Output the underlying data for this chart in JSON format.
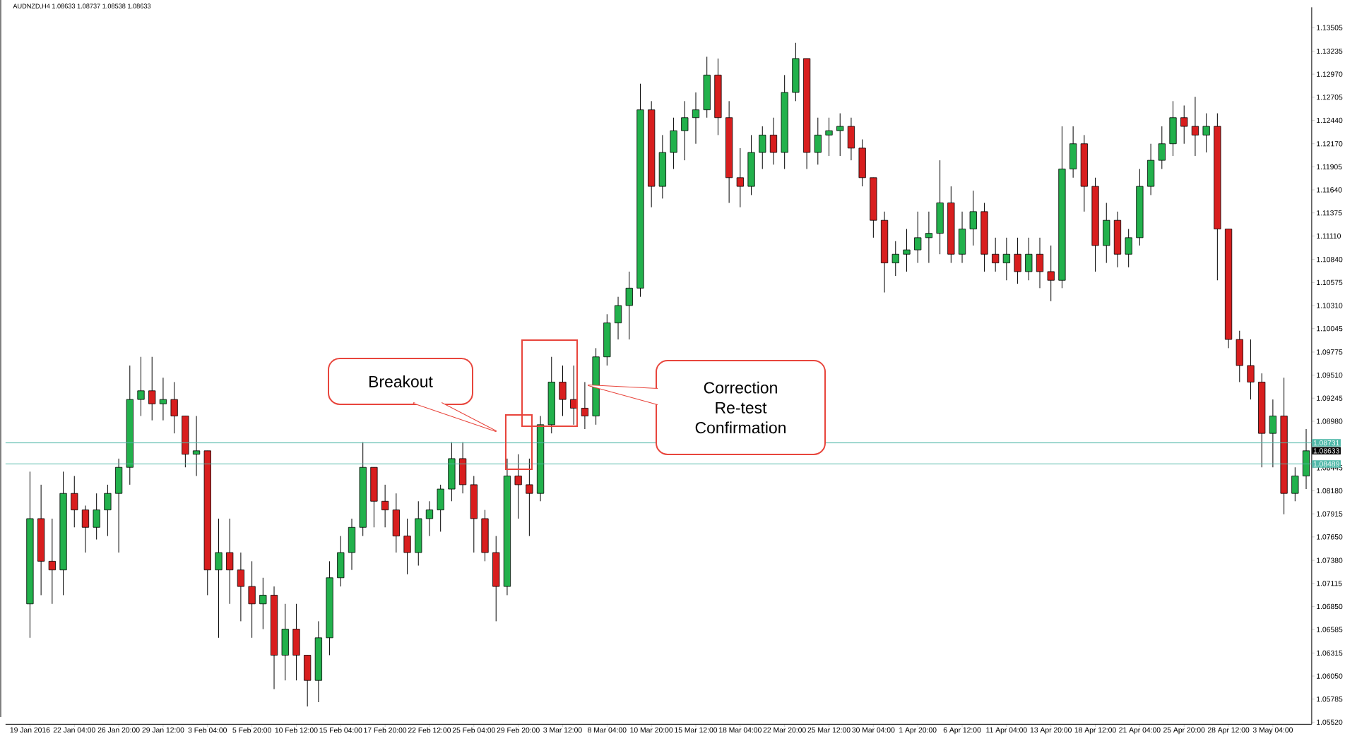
{
  "chart_data": {
    "type": "candlestick",
    "title": "AUDNZD,H4 1.08633 1.08737 1.08538 1.08633",
    "categories": [
      "19 Jan 2016",
      null,
      null,
      null,
      "22 Jan 04:00",
      null,
      null,
      null,
      "26 Jan 20:00",
      null,
      null,
      null,
      "29 Jan 12:00",
      null,
      null,
      null,
      "3 Feb 04:00",
      null,
      null,
      null,
      "5 Feb 20:00",
      null,
      null,
      null,
      "10 Feb 12:00",
      null,
      null,
      null,
      "15 Feb 04:00",
      null,
      null,
      null,
      "17 Feb 20:00",
      null,
      null,
      null,
      "22 Feb 12:00",
      null,
      null,
      null,
      "25 Feb 04:00",
      null,
      null,
      null,
      "29 Feb 20:00",
      null,
      null,
      null,
      "3 Mar 12:00",
      null,
      null,
      null,
      "8 Mar 04:00",
      null,
      null,
      null,
      "10 Mar 20:00",
      null,
      null,
      null,
      "15 Mar 12:00",
      null,
      null,
      null,
      "18 Mar 04:00",
      null,
      null,
      null,
      "22 Mar 20:00",
      null,
      null,
      null,
      "25 Mar 12:00",
      null,
      null,
      null,
      "30 Mar 04:00",
      null,
      null,
      null,
      "1 Apr 20:00",
      null,
      null,
      null,
      "6 Apr 12:00",
      null,
      null,
      null,
      "11 Apr 04:00",
      null,
      null,
      null,
      "13 Apr 20:00",
      null,
      null,
      null,
      "18 Apr 12:00",
      null,
      null,
      null,
      "21 Apr 04:00",
      null,
      null,
      null,
      "25 Apr 20:00",
      null,
      null,
      null,
      "28 Apr 12:00",
      null,
      null,
      null,
      "3 May 04:00",
      null,
      null,
      null
    ],
    "ohlc": [
      [
        1.0688,
        1.084,
        1.0649,
        1.0786
      ],
      [
        1.0786,
        1.0825,
        1.0698,
        1.0737
      ],
      [
        1.0737,
        1.0786,
        1.0688,
        1.0727
      ],
      [
        1.0727,
        1.084,
        1.0698,
        1.0815
      ],
      [
        1.0815,
        1.0835,
        1.0776,
        1.0796
      ],
      [
        1.0796,
        1.0801,
        1.0747,
        1.0776
      ],
      [
        1.0776,
        1.0815,
        1.0762,
        1.0796
      ],
      [
        1.0796,
        1.0825,
        1.0766,
        1.0815
      ],
      [
        1.0815,
        1.0855,
        1.0747,
        1.0845
      ],
      [
        1.0845,
        1.0962,
        1.0825,
        1.0923
      ],
      [
        1.0923,
        1.0972,
        1.0904,
        1.0933
      ],
      [
        1.0933,
        1.0972,
        1.0899,
        1.0918
      ],
      [
        1.0918,
        1.0948,
        1.0899,
        1.0923
      ],
      [
        1.0923,
        1.0943,
        1.0884,
        1.0904
      ],
      [
        1.0904,
        1.0904,
        1.0845,
        1.086
      ],
      [
        1.086,
        1.0904,
        1.0835,
        1.0864
      ],
      [
        1.0864,
        1.0864,
        1.0698,
        1.0727
      ],
      [
        1.0727,
        1.0786,
        1.0649,
        1.0747
      ],
      [
        1.0747,
        1.0786,
        1.0688,
        1.0727
      ],
      [
        1.0727,
        1.0747,
        1.0668,
        1.0708
      ],
      [
        1.0708,
        1.0737,
        1.0649,
        1.0688
      ],
      [
        1.0688,
        1.0718,
        1.0659,
        1.0698
      ],
      [
        1.0698,
        1.0708,
        1.059,
        1.0629
      ],
      [
        1.0629,
        1.0688,
        1.06,
        1.0659
      ],
      [
        1.0659,
        1.0688,
        1.06,
        1.0629
      ],
      [
        1.0629,
        1.0629,
        1.057,
        1.06
      ],
      [
        1.06,
        1.0668,
        1.0575,
        1.0649
      ],
      [
        1.0649,
        1.0737,
        1.0629,
        1.0718
      ],
      [
        1.0718,
        1.0766,
        1.0708,
        1.0747
      ],
      [
        1.0747,
        1.0786,
        1.0727,
        1.0776
      ],
      [
        1.0776,
        1.0874,
        1.0766,
        1.0845
      ],
      [
        1.0845,
        1.0845,
        1.0776,
        1.0806
      ],
      [
        1.0806,
        1.0825,
        1.0776,
        1.0796
      ],
      [
        1.0796,
        1.0815,
        1.0747,
        1.0766
      ],
      [
        1.0766,
        1.0786,
        1.0722,
        1.0747
      ],
      [
        1.0747,
        1.0806,
        1.0732,
        1.0786
      ],
      [
        1.0786,
        1.0806,
        1.0766,
        1.0796
      ],
      [
        1.0796,
        1.0825,
        1.0771,
        1.082
      ],
      [
        1.082,
        1.0874,
        1.0806,
        1.0855
      ],
      [
        1.0855,
        1.0874,
        1.0815,
        1.0825
      ],
      [
        1.0825,
        1.0835,
        1.0747,
        1.0786
      ],
      [
        1.0786,
        1.0796,
        1.0737,
        1.0747
      ],
      [
        1.0747,
        1.0766,
        1.0668,
        1.0708
      ],
      [
        1.0708,
        1.0855,
        1.0698,
        1.0835
      ],
      [
        1.0835,
        1.086,
        1.0786,
        1.0825
      ],
      [
        1.0825,
        1.0855,
        1.0766,
        1.0815
      ],
      [
        1.0815,
        1.0904,
        1.0806,
        1.0894
      ],
      [
        1.0894,
        1.0972,
        1.0884,
        1.0943
      ],
      [
        1.0943,
        1.0962,
        1.0904,
        1.0923
      ],
      [
        1.0923,
        1.0962,
        1.0894,
        1.0913
      ],
      [
        1.0913,
        1.0943,
        1.0889,
        1.0904
      ],
      [
        1.0904,
        1.0982,
        1.0894,
        1.0972
      ],
      [
        1.0972,
        1.1021,
        1.0962,
        1.1011
      ],
      [
        1.1011,
        1.1041,
        1.0992,
        1.1031
      ],
      [
        1.1031,
        1.107,
        1.0992,
        1.1051
      ],
      [
        1.1051,
        1.1286,
        1.1041,
        1.1256
      ],
      [
        1.1256,
        1.1266,
        1.1144,
        1.1168
      ],
      [
        1.1168,
        1.1227,
        1.1154,
        1.1207
      ],
      [
        1.1207,
        1.1247,
        1.1188,
        1.1232
      ],
      [
        1.1232,
        1.1266,
        1.1198,
        1.1247
      ],
      [
        1.1247,
        1.1276,
        1.1217,
        1.1256
      ],
      [
        1.1256,
        1.1317,
        1.1247,
        1.1296
      ],
      [
        1.1296,
        1.1315,
        1.1227,
        1.1247
      ],
      [
        1.1247,
        1.1266,
        1.1149,
        1.1178
      ],
      [
        1.1178,
        1.1212,
        1.1144,
        1.1168
      ],
      [
        1.1168,
        1.1227,
        1.1158,
        1.1207
      ],
      [
        1.1207,
        1.1237,
        1.1188,
        1.1227
      ],
      [
        1.1227,
        1.1247,
        1.1193,
        1.1207
      ],
      [
        1.1207,
        1.1296,
        1.1188,
        1.1276
      ],
      [
        1.1276,
        1.1333,
        1.1266,
        1.1315
      ],
      [
        1.1315,
        1.1315,
        1.1188,
        1.1207
      ],
      [
        1.1207,
        1.1247,
        1.1193,
        1.1227
      ],
      [
        1.1227,
        1.1247,
        1.1203,
        1.1232
      ],
      [
        1.1232,
        1.1252,
        1.1203,
        1.1237
      ],
      [
        1.1237,
        1.1247,
        1.1198,
        1.1212
      ],
      [
        1.1212,
        1.1222,
        1.1168,
        1.1178
      ],
      [
        1.1178,
        1.1178,
        1.1109,
        1.1129
      ],
      [
        1.1129,
        1.1139,
        1.1046,
        1.108
      ],
      [
        1.108,
        1.1105,
        1.1065,
        1.109
      ],
      [
        1.109,
        1.1119,
        1.107,
        1.1095
      ],
      [
        1.1095,
        1.1139,
        1.108,
        1.1109
      ],
      [
        1.1109,
        1.1139,
        1.108,
        1.1114
      ],
      [
        1.1114,
        1.1198,
        1.109,
        1.1149
      ],
      [
        1.1149,
        1.1168,
        1.108,
        1.109
      ],
      [
        1.109,
        1.1139,
        1.108,
        1.1119
      ],
      [
        1.1119,
        1.1163,
        1.11,
        1.1139
      ],
      [
        1.1139,
        1.1149,
        1.107,
        1.109
      ],
      [
        1.109,
        1.1109,
        1.107,
        1.108
      ],
      [
        1.108,
        1.1109,
        1.106,
        1.109
      ],
      [
        1.109,
        1.1109,
        1.1056,
        1.107
      ],
      [
        1.107,
        1.1109,
        1.106,
        1.109
      ],
      [
        1.109,
        1.1109,
        1.1051,
        1.107
      ],
      [
        1.107,
        1.11,
        1.1036,
        1.106
      ],
      [
        1.106,
        1.1237,
        1.1051,
        1.1188
      ],
      [
        1.1188,
        1.1237,
        1.1178,
        1.1217
      ],
      [
        1.1217,
        1.1227,
        1.1139,
        1.1168
      ],
      [
        1.1168,
        1.1178,
        1.107,
        1.11
      ],
      [
        1.11,
        1.1149,
        1.108,
        1.1129
      ],
      [
        1.1129,
        1.1139,
        1.1075,
        1.109
      ],
      [
        1.109,
        1.1119,
        1.1075,
        1.1109
      ],
      [
        1.1109,
        1.1188,
        1.11,
        1.1168
      ],
      [
        1.1168,
        1.1217,
        1.1158,
        1.1198
      ],
      [
        1.1198,
        1.1237,
        1.1188,
        1.1217
      ],
      [
        1.1217,
        1.1266,
        1.1203,
        1.1247
      ],
      [
        1.1247,
        1.1261,
        1.1217,
        1.1237
      ],
      [
        1.1237,
        1.1271,
        1.1203,
        1.1227
      ],
      [
        1.1227,
        1.1252,
        1.1207,
        1.1237
      ],
      [
        1.1237,
        1.1252,
        1.106,
        1.1119
      ],
      [
        1.1119,
        1.1119,
        1.0982,
        1.0992
      ],
      [
        1.0992,
        1.1002,
        1.0943,
        1.0962
      ],
      [
        1.0962,
        1.0992,
        1.0923,
        1.0943
      ],
      [
        1.0943,
        1.0953,
        1.0845,
        1.0884
      ],
      [
        1.0884,
        1.0923,
        1.0845,
        1.0904
      ],
      [
        1.0904,
        1.0948,
        1.0791,
        1.0815
      ],
      [
        1.0815,
        1.0845,
        1.0806,
        1.0835
      ],
      [
        1.0835,
        1.0889,
        1.082,
        1.0864
      ]
    ],
    "colors": [
      "#22b14c",
      "#d81e1e",
      "#d81e1e",
      "#22b14c",
      "#d81e1e",
      "#d81e1e",
      "#22b14c",
      "#22b14c",
      "#22b14c",
      "#22b14c",
      "#22b14c",
      "#d81e1e",
      "#22b14c",
      "#d81e1e",
      "#d81e1e",
      "#22b14c",
      "#d81e1e",
      "#22b14c",
      "#d81e1e",
      "#d81e1e",
      "#d81e1e",
      "#22b14c",
      "#d81e1e",
      "#22b14c",
      "#d81e1e",
      "#d81e1e",
      "#22b14c",
      "#22b14c",
      "#22b14c",
      "#22b14c",
      "#22b14c",
      "#d81e1e",
      "#d81e1e",
      "#d81e1e",
      "#d81e1e",
      "#22b14c",
      "#22b14c",
      "#22b14c",
      "#22b14c",
      "#d81e1e",
      "#d81e1e",
      "#d81e1e",
      "#d81e1e",
      "#22b14c",
      "#d81e1e",
      "#d81e1e",
      "#22b14c",
      "#22b14c",
      "#d81e1e",
      "#d81e1e",
      "#d81e1e",
      "#22b14c",
      "#22b14c",
      "#22b14c",
      "#22b14c",
      "#22b14c",
      "#d81e1e",
      "#22b14c",
      "#22b14c",
      "#22b14c",
      "#22b14c",
      "#22b14c",
      "#d81e1e",
      "#d81e1e",
      "#d81e1e",
      "#22b14c",
      "#22b14c",
      "#d81e1e",
      "#22b14c",
      "#22b14c",
      "#d81e1e",
      "#22b14c",
      "#22b14c",
      "#22b14c",
      "#d81e1e",
      "#d81e1e",
      "#d81e1e",
      "#d81e1e",
      "#22b14c",
      "#22b14c",
      "#22b14c",
      "#22b14c",
      "#22b14c",
      "#d81e1e",
      "#22b14c",
      "#22b14c",
      "#d81e1e",
      "#d81e1e",
      "#22b14c",
      "#d81e1e",
      "#22b14c",
      "#d81e1e",
      "#d81e1e",
      "#22b14c",
      "#22b14c",
      "#d81e1e",
      "#d81e1e",
      "#22b14c",
      "#d81e1e",
      "#22b14c",
      "#22b14c",
      "#22b14c",
      "#22b14c",
      "#22b14c",
      "#d81e1e",
      "#d81e1e",
      "#22b14c",
      "#d81e1e",
      "#d81e1e",
      "#d81e1e",
      "#d81e1e",
      "#d81e1e",
      "#22b14c",
      "#d81e1e",
      "#22b14c",
      "#22b14c"
    ],
    "ylim": [
      1.05496,
      1.13739
    ],
    "yticks": [
      {
        "value": 1.0552,
        "label": "1.05520"
      },
      {
        "value": 1.05785,
        "label": "1.05785"
      },
      {
        "value": 1.0605,
        "label": "1.06050"
      },
      {
        "value": 1.06315,
        "label": "1.06315"
      },
      {
        "value": 1.06585,
        "label": "1.06585"
      },
      {
        "value": 1.0685,
        "label": "1.06850"
      },
      {
        "value": 1.07115,
        "label": "1.07115"
      },
      {
        "value": 1.0738,
        "label": "1.07380"
      },
      {
        "value": 1.0765,
        "label": "1.07650"
      },
      {
        "value": 1.07915,
        "label": "1.07915"
      },
      {
        "value": 1.0818,
        "label": "1.08180"
      },
      {
        "value": 1.08445,
        "label": "1.08445"
      },
      {
        "value": 1.0898,
        "label": "1.08980"
      },
      {
        "value": 1.09245,
        "label": "1.09245"
      },
      {
        "value": 1.0951,
        "label": "1.09510"
      },
      {
        "value": 1.09775,
        "label": "1.09775"
      },
      {
        "value": 1.10045,
        "label": "1.10045"
      },
      {
        "value": 1.1031,
        "label": "1.10310"
      },
      {
        "value": 1.10575,
        "label": "1.10575"
      },
      {
        "value": 1.1084,
        "label": "1.10840"
      },
      {
        "value": 1.1111,
        "label": "1.11110"
      },
      {
        "value": 1.11375,
        "label": "1.11375"
      },
      {
        "value": 1.1164,
        "label": "1.11640"
      },
      {
        "value": 1.11905,
        "label": "1.11905"
      },
      {
        "value": 1.1217,
        "label": "1.12170"
      },
      {
        "value": 1.1244,
        "label": "1.12440"
      },
      {
        "value": 1.12705,
        "label": "1.12705"
      },
      {
        "value": 1.1297,
        "label": "1.12970"
      },
      {
        "value": 1.13235,
        "label": "1.13235"
      },
      {
        "value": 1.13505,
        "label": "1.13505"
      }
    ],
    "ref_lines": [
      {
        "axis": "y",
        "value": 1.08731,
        "label": "1.08731",
        "color": "#4fb8a8"
      },
      {
        "axis": "y",
        "value": 1.08489,
        "label": "1.08489",
        "color": "#4fb8a8"
      }
    ],
    "annotations": [
      "Breakout",
      "Correction Re-test Confirmation",
      "1.08633"
    ]
  }
}
